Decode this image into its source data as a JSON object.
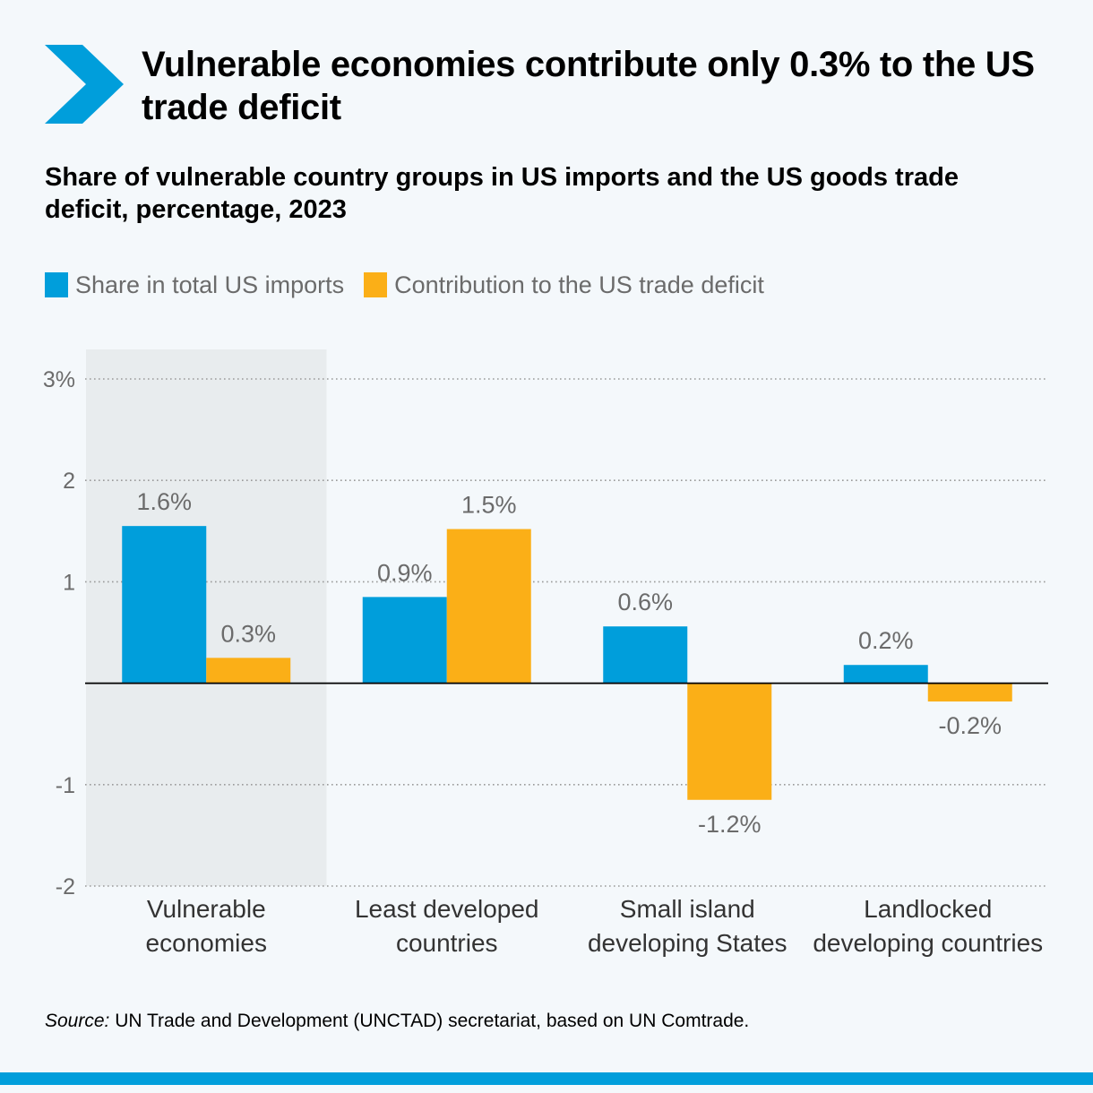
{
  "title": "Vulnerable economies contribute only 0.3% to the US trade deficit",
  "subtitle": "Share of vulnerable country groups in US imports and the US goods trade deficit, percentage, 2023",
  "legend": {
    "imports_label": "Share in total US imports",
    "deficit_label": "Contribution to the US trade deficit"
  },
  "colors": {
    "imports": "#009edb",
    "deficit": "#fbaf17",
    "highlight_bg": "#e8ecee",
    "accent": "#009edb"
  },
  "chart_data": {
    "type": "bar",
    "categories": [
      [
        "Vulnerable",
        "economies"
      ],
      [
        "Least developed",
        "countries"
      ],
      [
        "Small island",
        "developing States"
      ],
      [
        "Landlocked",
        "developing countries"
      ]
    ],
    "series": [
      {
        "name": "Share in total US imports",
        "values": [
          1.55,
          0.85,
          0.56,
          0.18
        ],
        "labels": [
          "1.6%",
          "0.9%",
          "0.6%",
          "0.2%"
        ]
      },
      {
        "name": "Contribution to the US trade deficit",
        "values": [
          0.25,
          1.52,
          -1.15,
          -0.18
        ],
        "labels": [
          "0.3%",
          "1.5%",
          "-1.2%",
          "-0.2%"
        ]
      }
    ],
    "ylim": [
      -2,
      3
    ],
    "yticks": [
      {
        "value": 3,
        "label": "3%"
      },
      {
        "value": 2,
        "label": "2"
      },
      {
        "value": 1,
        "label": "1"
      },
      {
        "value": -1,
        "label": "-1"
      },
      {
        "value": -2,
        "label": "-2"
      }
    ],
    "highlighted_category": 0,
    "grid": true
  },
  "source": {
    "prefix": "Source:",
    "text": " UN Trade and Development (UNCTAD) secretariat, based on UN Comtrade."
  }
}
